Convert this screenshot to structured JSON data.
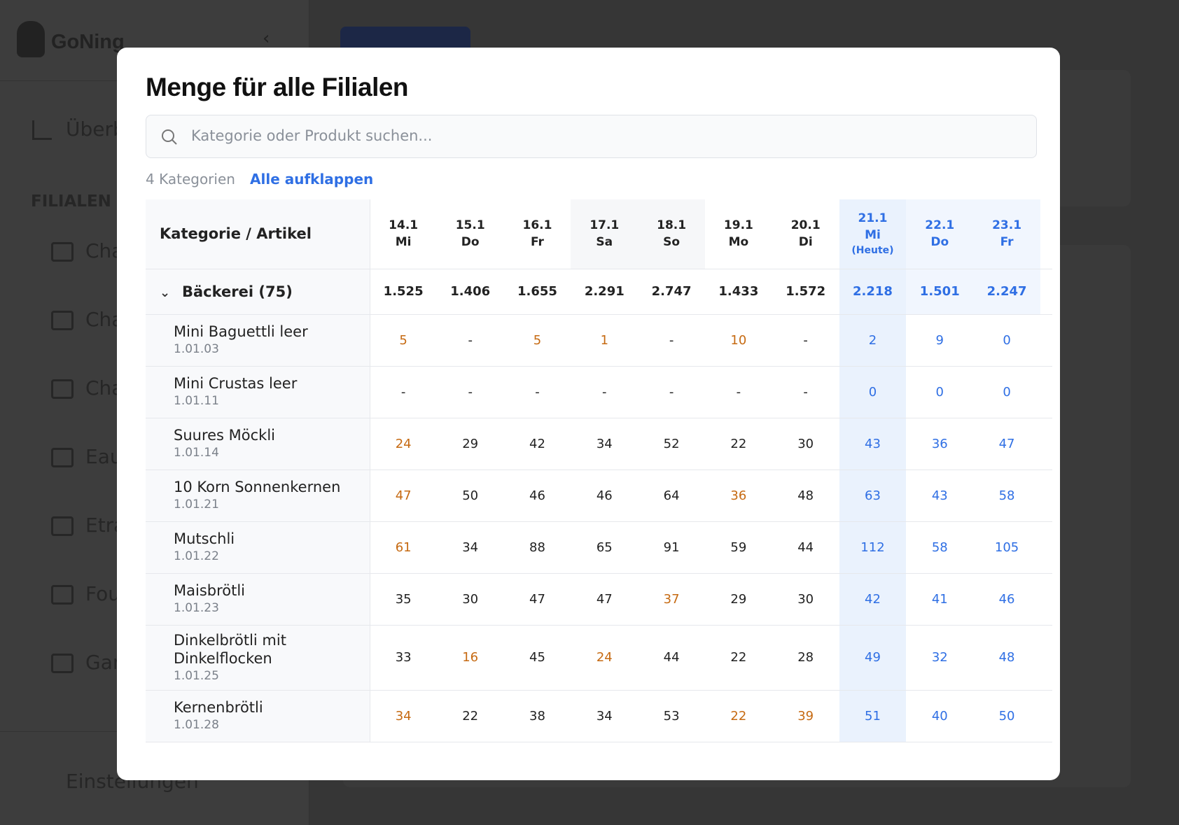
{
  "sidebar": {
    "brand": "GoNing",
    "overview": "Überb",
    "section": "FILIALEN",
    "stores": [
      "Cha",
      "Cha",
      "Cha",
      "Eau",
      "Etra",
      "Fou",
      "Gar"
    ],
    "settings": "Einstellungen"
  },
  "modal": {
    "title": "Menge für alle Filialen",
    "search_placeholder": "Kategorie oder Produkt suchen...",
    "count": "4 Kategorien",
    "expand_all": "Alle aufklappen",
    "table": {
      "header": "Kategorie / Artikel",
      "columns": [
        {
          "date": "14.1",
          "day": "Mi"
        },
        {
          "date": "15.1",
          "day": "Do"
        },
        {
          "date": "16.1",
          "day": "Fr"
        },
        {
          "date": "17.1",
          "day": "Sa"
        },
        {
          "date": "18.1",
          "day": "So"
        },
        {
          "date": "19.1",
          "day": "Mo"
        },
        {
          "date": "20.1",
          "day": "Di"
        },
        {
          "date": "21.1",
          "day": "Mi",
          "note": "(Heute)"
        },
        {
          "date": "22.1",
          "day": "Do"
        },
        {
          "date": "23.1",
          "day": "Fr"
        }
      ],
      "category": {
        "name": "Bäckerei (75)",
        "values": [
          "1.525",
          "1.406",
          "1.655",
          "2.291",
          "2.747",
          "1.433",
          "1.572",
          "2.218",
          "1.501",
          "2.247"
        ]
      },
      "rows": [
        {
          "name": "Mini Baguettli leer",
          "code": "1.01.03",
          "values": [
            "5",
            "-",
            "5",
            "1",
            "-",
            "10",
            "-",
            "2",
            "9",
            "0"
          ],
          "highlighted": [
            0,
            2,
            3,
            5
          ]
        },
        {
          "name": "Mini Crustas leer",
          "code": "1.01.11",
          "values": [
            "-",
            "-",
            "-",
            "-",
            "-",
            "-",
            "-",
            "0",
            "0",
            "0"
          ],
          "highlighted": []
        },
        {
          "name": "Suures Möckli",
          "code": "1.01.14",
          "values": [
            "24",
            "29",
            "42",
            "34",
            "52",
            "22",
            "30",
            "43",
            "36",
            "47"
          ],
          "highlighted": [
            0
          ]
        },
        {
          "name": "10 Korn Sonnenkernen",
          "code": "1.01.21",
          "values": [
            "47",
            "50",
            "46",
            "46",
            "64",
            "36",
            "48",
            "63",
            "43",
            "58"
          ],
          "highlighted": [
            0,
            5
          ]
        },
        {
          "name": "Mutschli",
          "code": "1.01.22",
          "values": [
            "61",
            "34",
            "88",
            "65",
            "91",
            "59",
            "44",
            "112",
            "58",
            "105"
          ],
          "highlighted": [
            0
          ]
        },
        {
          "name": "Maisbrötli",
          "code": "1.01.23",
          "values": [
            "35",
            "30",
            "47",
            "47",
            "37",
            "29",
            "30",
            "42",
            "41",
            "46"
          ],
          "highlighted": [
            4
          ]
        },
        {
          "name": "Dinkelbrötli mit Dinkelflocken",
          "code": "1.01.25",
          "values": [
            "33",
            "16",
            "45",
            "24",
            "44",
            "22",
            "28",
            "49",
            "32",
            "48"
          ],
          "highlighted": [
            1,
            3
          ]
        },
        {
          "name": "Kernenbrötli",
          "code": "1.01.28",
          "values": [
            "34",
            "22",
            "38",
            "34",
            "53",
            "22",
            "39",
            "51",
            "40",
            "50"
          ],
          "highlighted": [
            0,
            5,
            6
          ]
        }
      ]
    }
  }
}
